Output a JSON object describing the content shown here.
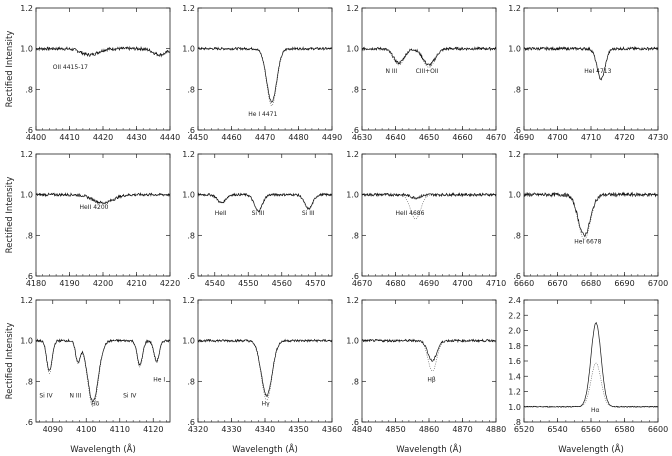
{
  "figure": {
    "ylabel": "Rectified Intensity",
    "xlabel": "Wavelength (Å)"
  },
  "chart_data": [
    {
      "type": "line",
      "xlim": [
        4400,
        4440
      ],
      "ylim": [
        0.6,
        1.2
      ],
      "xticks": [
        "4400",
        "4410",
        "4420",
        "4430",
        "4440"
      ],
      "yticks": [
        "1.2",
        "1.0",
        ".8",
        ".6"
      ],
      "annotations": [
        {
          "text": "OII 4415-17",
          "x": 4405,
          "y": 0.9
        }
      ],
      "lines": [
        {
          "center": 4416,
          "depth": 0.03,
          "width": 2.5
        },
        {
          "center": 4437,
          "depth": 0.03,
          "width": 2.0
        }
      ],
      "model_scale": 1.0,
      "noise": 0.008
    },
    {
      "type": "line",
      "xlim": [
        4450,
        4490
      ],
      "ylim": [
        0.6,
        1.2
      ],
      "xticks": [
        "4450",
        "4460",
        "4470",
        "4480",
        "4490"
      ],
      "yticks": [
        "1.2",
        "1.0",
        ".8",
        ".6"
      ],
      "annotations": [
        {
          "text": "He I 4471",
          "x": 4465,
          "y": 0.67
        }
      ],
      "lines": [
        {
          "center": 4472,
          "depth": 0.26,
          "width": 1.5
        }
      ],
      "model_scale": 1.08,
      "noise": 0.006
    },
    {
      "type": "line",
      "xlim": [
        4630,
        4670
      ],
      "ylim": [
        0.6,
        1.2
      ],
      "xticks": [
        "4630",
        "4640",
        "4650",
        "4660",
        "4670"
      ],
      "yticks": [
        "1.2",
        "1.0",
        ".8",
        ".6"
      ],
      "annotations": [
        {
          "text": "N III",
          "x": 4637,
          "y": 0.88
        },
        {
          "text": "CIII+OII",
          "x": 4646,
          "y": 0.88
        }
      ],
      "lines": [
        {
          "center": 4641,
          "depth": 0.07,
          "width": 1.6
        },
        {
          "center": 4650,
          "depth": 0.08,
          "width": 1.8
        }
      ],
      "model_scale": 1.15,
      "noise": 0.007
    },
    {
      "type": "line",
      "xlim": [
        4690,
        4730
      ],
      "ylim": [
        0.6,
        1.2
      ],
      "xticks": [
        "4690",
        "4700",
        "4710",
        "4720",
        "4730"
      ],
      "yticks": [
        "1.2",
        "1.0",
        ".8",
        ".6"
      ],
      "annotations": [
        {
          "text": "HeI 4713",
          "x": 4708,
          "y": 0.88
        }
      ],
      "lines": [
        {
          "center": 4713,
          "depth": 0.15,
          "width": 1.2
        }
      ],
      "model_scale": 1.0,
      "noise": 0.007
    },
    {
      "type": "line",
      "xlim": [
        4180,
        4220
      ],
      "ylim": [
        0.6,
        1.2
      ],
      "xticks": [
        "4180",
        "4190",
        "4200",
        "4210",
        "4220"
      ],
      "yticks": [
        "1.2",
        "1.0",
        ".8",
        ".6"
      ],
      "annotations": [
        {
          "text": "HeII 4200",
          "x": 4193,
          "y": 0.93
        }
      ],
      "lines": [
        {
          "center": 4200,
          "depth": 0.04,
          "width": 3.0
        }
      ],
      "model_scale": 1.0,
      "noise": 0.007
    },
    {
      "type": "line",
      "xlim": [
        4535,
        4575
      ],
      "ylim": [
        0.6,
        1.2
      ],
      "xticks": [
        "4540",
        "4550",
        "4560",
        "4570"
      ],
      "yticks": [
        "1.2",
        "1.0",
        ".8",
        ".6"
      ],
      "annotations": [
        {
          "text": "HeII",
          "x": 4540,
          "y": 0.9
        },
        {
          "text": "Si III",
          "x": 4551,
          "y": 0.9
        },
        {
          "text": "Si III",
          "x": 4566,
          "y": 0.9
        }
      ],
      "lines": [
        {
          "center": 4542,
          "depth": 0.04,
          "width": 1.2
        },
        {
          "center": 4553,
          "depth": 0.08,
          "width": 1.2
        },
        {
          "center": 4568,
          "depth": 0.07,
          "width": 1.2
        }
      ],
      "model_scale": 1.0,
      "noise": 0.006
    },
    {
      "type": "line",
      "xlim": [
        4670,
        4710
      ],
      "ylim": [
        0.6,
        1.2
      ],
      "xticks": [
        "4670",
        "4680",
        "4690",
        "4700",
        "4710"
      ],
      "yticks": [
        "1.2",
        "1.0",
        ".8",
        ".6"
      ],
      "annotations": [
        {
          "text": "HeII 4686",
          "x": 4680,
          "y": 0.9
        }
      ],
      "lines": [
        {
          "center": 4686,
          "depth": 0.015,
          "width": 1.5
        }
      ],
      "model_scale": 8.0,
      "noise": 0.007
    },
    {
      "type": "line",
      "xlim": [
        6660,
        6700
      ],
      "ylim": [
        0.6,
        1.2
      ],
      "xticks": [
        "6660",
        "6670",
        "6680",
        "6690",
        "6700"
      ],
      "yticks": [
        "1.2",
        "1.0",
        ".8",
        ".6"
      ],
      "annotations": [
        {
          "text": "HeI 6678",
          "x": 6675,
          "y": 0.76
        }
      ],
      "lines": [
        {
          "center": 6678,
          "depth": 0.2,
          "width": 1.8
        }
      ],
      "model_scale": 1.1,
      "noise": 0.009
    },
    {
      "type": "line",
      "xlim": [
        4085,
        4125
      ],
      "ylim": [
        0.6,
        1.2
      ],
      "xticks": [
        "4090",
        "4100",
        "4110",
        "4120"
      ],
      "yticks": [
        "1.2",
        "1.0",
        ".8",
        ".6"
      ],
      "annotations": [
        {
          "text": "Si IV",
          "x": 4086,
          "y": 0.72
        },
        {
          "text": "N III",
          "x": 4095,
          "y": 0.72
        },
        {
          "text": "Hδ",
          "x": 4101.5,
          "y": 0.68
        },
        {
          "text": "Si IV",
          "x": 4111,
          "y": 0.72
        },
        {
          "text": "He I",
          "x": 4120,
          "y": 0.8
        }
      ],
      "lines": [
        {
          "center": 4089,
          "depth": 0.15,
          "width": 0.8
        },
        {
          "center": 4097.5,
          "depth": 0.1,
          "width": 0.7
        },
        {
          "center": 4102,
          "depth": 0.3,
          "width": 1.6
        },
        {
          "center": 4116,
          "depth": 0.12,
          "width": 0.8
        },
        {
          "center": 4121,
          "depth": 0.1,
          "width": 0.8
        }
      ],
      "model_scale": 1.08,
      "noise": 0.006
    },
    {
      "type": "line",
      "xlim": [
        4320,
        4360
      ],
      "ylim": [
        0.6,
        1.2
      ],
      "xticks": [
        "4320",
        "4330",
        "4340",
        "4350",
        "4360"
      ],
      "yticks": [
        "1.2",
        "1.0",
        ".8",
        ".6"
      ],
      "annotations": [
        {
          "text": "Hγ",
          "x": 4339,
          "y": 0.68
        }
      ],
      "lines": [
        {
          "center": 4340.5,
          "depth": 0.27,
          "width": 1.6
        }
      ],
      "model_scale": 1.08,
      "noise": 0.006
    },
    {
      "type": "line",
      "xlim": [
        4840,
        4880
      ],
      "ylim": [
        0.6,
        1.2
      ],
      "xticks": [
        "4840",
        "4850",
        "4860",
        "4870",
        "4880"
      ],
      "yticks": [
        "1.2",
        "1.0",
        ".8",
        ".6"
      ],
      "annotations": [
        {
          "text": "Hβ",
          "x": 4859.5,
          "y": 0.8
        }
      ],
      "lines": [
        {
          "center": 4861,
          "depth": 0.1,
          "width": 1.3
        }
      ],
      "model_scale": 1.5,
      "noise": 0.006
    },
    {
      "type": "line",
      "xlim": [
        6520,
        6600
      ],
      "ylim": [
        0.8,
        2.4
      ],
      "xticks": [
        "6520",
        "6540",
        "6560",
        "6580",
        "6600"
      ],
      "yticks": [
        "2.4",
        "2.2",
        "2.0",
        "1.8",
        "1.6",
        "1.4",
        "1.2",
        "1.0",
        ".8"
      ],
      "annotations": [
        {
          "text": "Hα",
          "x": 6560,
          "y": 0.93
        }
      ],
      "lines": [
        {
          "center": 6563,
          "depth": -1.1,
          "width": 3.0
        }
      ],
      "model_scale": 0.52,
      "noise": 0.006
    }
  ]
}
